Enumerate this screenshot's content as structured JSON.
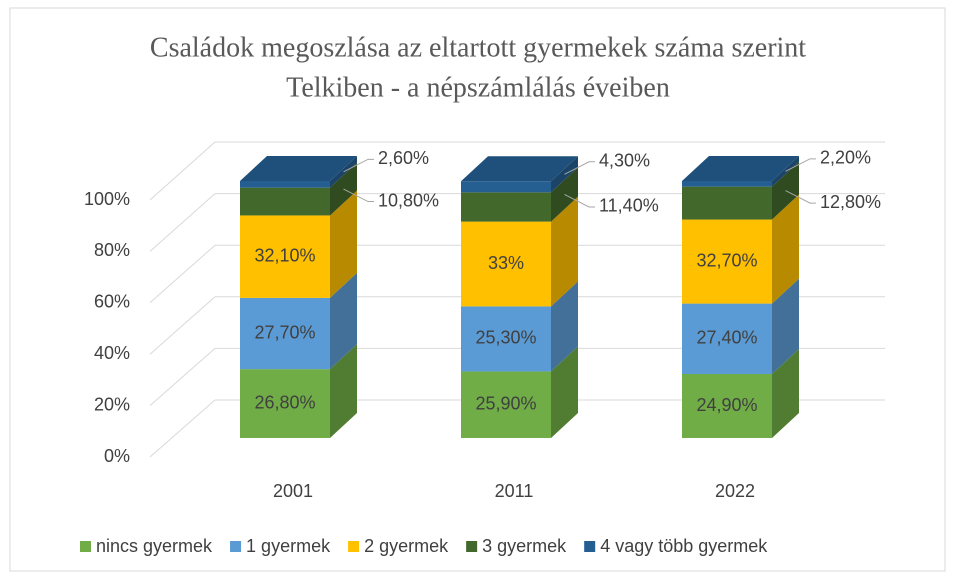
{
  "chart_data": {
    "type": "bar3d_stacked",
    "title": "Családok megoszlása az eltartott gyermekek száma szerint",
    "subtitle": "Telkiben - a népszámlálás éveiben",
    "categories": [
      "2001",
      "2011",
      "2022"
    ],
    "series": [
      {
        "name": "nincs gyermek",
        "color": "#70ad47",
        "values": [
          26.8,
          25.9,
          24.9
        ],
        "value_labels": [
          "26,80%",
          "25,90%",
          "24,90%"
        ]
      },
      {
        "name": "1 gyermek",
        "color": "#5b9bd5",
        "values": [
          27.7,
          25.3,
          27.4
        ],
        "value_labels": [
          "27,70%",
          "25,30%",
          "27,40%"
        ]
      },
      {
        "name": "2 gyermek",
        "color": "#ffc000",
        "values": [
          32.1,
          33,
          32.7
        ],
        "value_labels": [
          "32,10%",
          "33%",
          "32,70%"
        ]
      },
      {
        "name": "3 gyermek",
        "color": "#43682b",
        "values": [
          10.8,
          11.4,
          12.8
        ],
        "value_labels": [
          "10,80%",
          "11,40%",
          "12,80%"
        ]
      },
      {
        "name": "4 vagy több gyermek",
        "color": "#255e91",
        "values": [
          2.6,
          4.3,
          2.2
        ],
        "value_labels": [
          "2,60%",
          "4,30%",
          "2,20%"
        ]
      }
    ],
    "ylim": [
      0,
      100
    ],
    "yticks": [
      {
        "value": 0,
        "label": "0%"
      },
      {
        "value": 20,
        "label": "20%"
      },
      {
        "value": 40,
        "label": "40%"
      },
      {
        "value": 60,
        "label": "60%"
      },
      {
        "value": 80,
        "label": "80%"
      },
      {
        "value": 100,
        "label": "100%"
      }
    ],
    "grid": true,
    "legend": "bottom"
  }
}
